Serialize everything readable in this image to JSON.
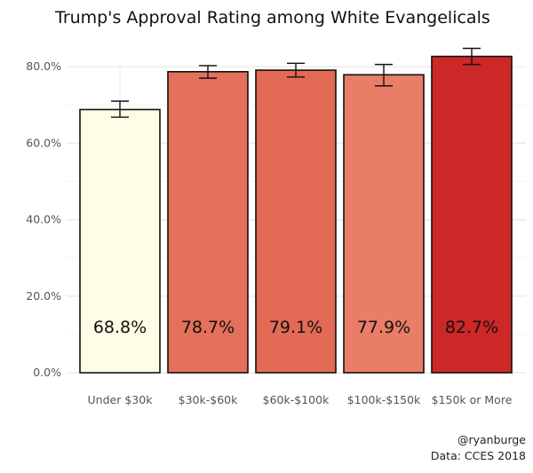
{
  "chart_data": {
    "type": "bar",
    "title": "Trump's Approval Rating among White Evangelicals",
    "xlabel": "",
    "ylabel": "",
    "categories": [
      "Under $30k",
      "$30k-$60k",
      "$60k-$100k",
      "$100k-$150k",
      "$150k or More"
    ],
    "values": [
      68.8,
      78.7,
      79.1,
      77.9,
      82.7
    ],
    "data_labels": [
      "68.8%",
      "78.7%",
      "79.1%",
      "77.9%",
      "82.7%"
    ],
    "error_low": [
      66.8,
      77.0,
      77.3,
      75.0,
      80.6
    ],
    "error_high": [
      71.0,
      80.3,
      80.9,
      80.6,
      84.8
    ],
    "colors": [
      "#fffde6",
      "#e3705a",
      "#e36a55",
      "#e97d67",
      "#cb2827"
    ],
    "ylim": [
      0,
      87
    ],
    "yticks": [
      0,
      20,
      40,
      60,
      80
    ],
    "ytick_labels": [
      "0.0%",
      "20.0%",
      "40.0%",
      "60.0%",
      "80.0%"
    ],
    "grid": true,
    "caption": [
      "@ryanburge",
      "Data: CCES 2018"
    ]
  }
}
